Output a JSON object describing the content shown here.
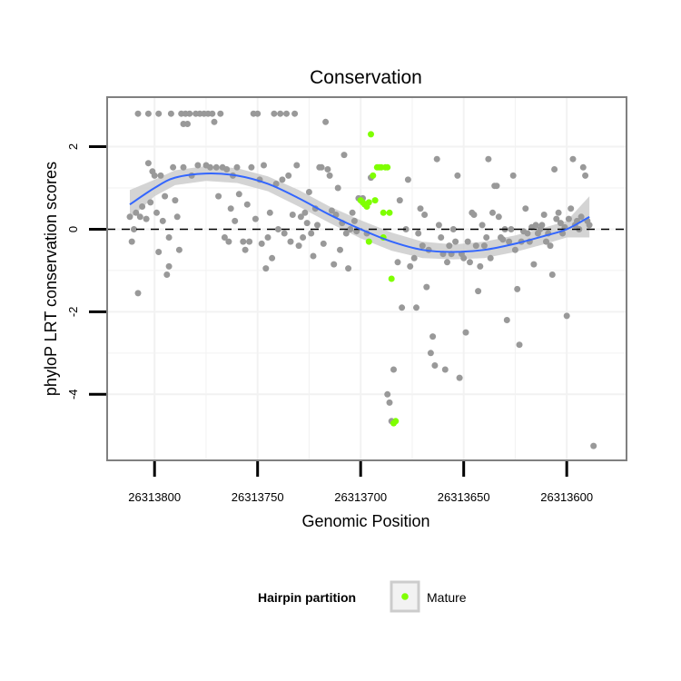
{
  "chart_data": {
    "type": "scatter",
    "title": "Conservation",
    "xlabel": "Genomic Position",
    "ylabel": "phyloP LRT conservation scores",
    "x_reversed": true,
    "xlim": [
      26313823,
      26313571
    ],
    "ylim": [
      -5.6,
      3.2
    ],
    "xticks": [
      26313800,
      26313750,
      26313700,
      26313650,
      26313600
    ],
    "xtick_labels": [
      "26313800",
      "26313750",
      "26313700",
      "26313650",
      "26313600"
    ],
    "yticks": [
      -4,
      -2,
      0,
      2
    ],
    "ytick_labels": [
      "-4",
      "-2",
      "0",
      "2"
    ],
    "reference_line": {
      "y": 0,
      "style": "dashed"
    },
    "grid": true,
    "legend": {
      "title": "Hairpin partition",
      "entries": [
        {
          "label": "Mature",
          "color": "#7fff00"
        }
      ],
      "position": "bottom"
    },
    "colors": {
      "points": "#999999",
      "mature": "#7fff00",
      "smooth": "#3366ff",
      "ribbon": "#cccccc",
      "panel_border": "#808080",
      "grid": "#f2f2f2"
    },
    "series": [
      {
        "name": "Other",
        "color": "#999999",
        "points": [
          [
            26313812,
            0.3
          ],
          [
            26313811,
            -0.3
          ],
          [
            26313810,
            0.0
          ],
          [
            26313809,
            0.4
          ],
          [
            26313808,
            -1.55
          ],
          [
            26313808,
            2.8
          ],
          [
            26313807,
            0.3
          ],
          [
            26313806,
            0.55
          ],
          [
            26313804,
            0.25
          ],
          [
            26313803,
            2.8
          ],
          [
            26313803,
            1.6
          ],
          [
            26313802,
            0.65
          ],
          [
            26313801,
            1.4
          ],
          [
            26313800,
            1.3
          ],
          [
            26313799,
            0.4
          ],
          [
            26313798,
            -0.55
          ],
          [
            26313798,
            2.8
          ],
          [
            26313797,
            1.3
          ],
          [
            26313796,
            0.2
          ],
          [
            26313795,
            0.8
          ],
          [
            26313794,
            -1.1
          ],
          [
            26313793,
            -0.9
          ],
          [
            26313793,
            -0.2
          ],
          [
            26313792,
            2.8
          ],
          [
            26313791,
            1.5
          ],
          [
            26313790,
            0.7
          ],
          [
            26313789,
            0.3
          ],
          [
            26313788,
            -0.5
          ],
          [
            26313787,
            2.8
          ],
          [
            26313786,
            2.55
          ],
          [
            26313786,
            1.5
          ],
          [
            26313785,
            2.8
          ],
          [
            26313784,
            2.55
          ],
          [
            26313783,
            2.8
          ],
          [
            26313782,
            1.3
          ],
          [
            26313780,
            2.8
          ],
          [
            26313779,
            1.55
          ],
          [
            26313778,
            2.8
          ],
          [
            26313776,
            2.8
          ],
          [
            26313775,
            1.55
          ],
          [
            26313774,
            2.8
          ],
          [
            26313773,
            1.5
          ],
          [
            26313772,
            2.8
          ],
          [
            26313771,
            2.6
          ],
          [
            26313770,
            1.5
          ],
          [
            26313769,
            0.8
          ],
          [
            26313768,
            2.8
          ],
          [
            26313767,
            1.5
          ],
          [
            26313766,
            -0.2
          ],
          [
            26313765,
            1.45
          ],
          [
            26313764,
            -0.3
          ],
          [
            26313763,
            0.5
          ],
          [
            26313762,
            1.3
          ],
          [
            26313761,
            0.2
          ],
          [
            26313760,
            1.5
          ],
          [
            26313759,
            0.85
          ],
          [
            26313757,
            -0.3
          ],
          [
            26313756,
            -0.5
          ],
          [
            26313755,
            0.6
          ],
          [
            26313754,
            -0.3
          ],
          [
            26313753,
            1.5
          ],
          [
            26313752,
            2.8
          ],
          [
            26313751,
            0.25
          ],
          [
            26313750,
            2.8
          ],
          [
            26313749,
            1.2
          ],
          [
            26313748,
            -0.35
          ],
          [
            26313747,
            1.55
          ],
          [
            26313746,
            -0.95
          ],
          [
            26313745,
            -0.2
          ],
          [
            26313744,
            0.4
          ],
          [
            26313743,
            -0.7
          ],
          [
            26313742,
            2.8
          ],
          [
            26313741,
            1.1
          ],
          [
            26313740,
            0.0
          ],
          [
            26313739,
            2.8
          ],
          [
            26313738,
            1.2
          ],
          [
            26313737,
            -0.1
          ],
          [
            26313736,
            2.8
          ],
          [
            26313735,
            1.3
          ],
          [
            26313734,
            -0.3
          ],
          [
            26313733,
            0.35
          ],
          [
            26313732,
            2.8
          ],
          [
            26313731,
            1.55
          ],
          [
            26313730,
            -0.4
          ],
          [
            26313729,
            0.3
          ],
          [
            26313728,
            -0.2
          ],
          [
            26313727,
            0.4
          ],
          [
            26313726,
            0.15
          ],
          [
            26313725,
            0.9
          ],
          [
            26313724,
            -0.1
          ],
          [
            26313723,
            -0.65
          ],
          [
            26313722,
            0.5
          ],
          [
            26313721,
            0.1
          ],
          [
            26313720,
            1.5
          ],
          [
            26313719,
            1.5
          ],
          [
            26313718,
            -0.35
          ],
          [
            26313717,
            2.6
          ],
          [
            26313716,
            1.45
          ],
          [
            26313715,
            1.3
          ],
          [
            26313714,
            0.45
          ],
          [
            26313713,
            -0.85
          ],
          [
            26313712,
            0.35
          ],
          [
            26313711,
            1.0
          ],
          [
            26313710,
            -0.5
          ],
          [
            26313709,
            0.15
          ],
          [
            26313708,
            1.8
          ],
          [
            26313707,
            -0.1
          ],
          [
            26313706,
            -0.95
          ],
          [
            26313705,
            0.0
          ],
          [
            26313704,
            0.4
          ],
          [
            26313703,
            0.2
          ],
          [
            26313702,
            -0.05
          ],
          [
            26313701,
            0.75
          ],
          [
            26313699,
            0.75
          ],
          [
            26313697,
            -0.1
          ],
          [
            26313695,
            1.25
          ],
          [
            26313687,
            -4.0
          ],
          [
            26313686,
            -4.2
          ],
          [
            26313685,
            -4.65
          ],
          [
            26313684,
            -3.4
          ],
          [
            26313682,
            -0.8
          ],
          [
            26313681,
            0.7
          ],
          [
            26313680,
            -1.9
          ],
          [
            26313678,
            0.0
          ],
          [
            26313677,
            1.2
          ],
          [
            26313676,
            -0.9
          ],
          [
            26313674,
            -0.7
          ],
          [
            26313673,
            -1.9
          ],
          [
            26313672,
            -0.1
          ],
          [
            26313671,
            0.5
          ],
          [
            26313670,
            -0.4
          ],
          [
            26313669,
            0.35
          ],
          [
            26313668,
            -1.4
          ],
          [
            26313667,
            -0.5
          ],
          [
            26313666,
            -3.0
          ],
          [
            26313665,
            -2.6
          ],
          [
            26313664,
            -3.3
          ],
          [
            26313663,
            1.7
          ],
          [
            26313662,
            0.1
          ],
          [
            26313661,
            -0.2
          ],
          [
            26313660,
            -0.6
          ],
          [
            26313659,
            -3.4
          ],
          [
            26313658,
            -0.8
          ],
          [
            26313657,
            -0.4
          ],
          [
            26313656,
            -0.6
          ],
          [
            26313655,
            0.0
          ],
          [
            26313654,
            -0.3
          ],
          [
            26313653,
            1.3
          ],
          [
            26313652,
            -3.6
          ],
          [
            26313651,
            -0.6
          ],
          [
            26313650,
            -0.7
          ],
          [
            26313649,
            -2.5
          ],
          [
            26313648,
            -0.3
          ],
          [
            26313647,
            -0.8
          ],
          [
            26313646,
            0.4
          ],
          [
            26313645,
            0.35
          ],
          [
            26313644,
            -0.4
          ],
          [
            26313643,
            -1.5
          ],
          [
            26313642,
            -0.9
          ],
          [
            26313641,
            0.1
          ],
          [
            26313640,
            -0.4
          ],
          [
            26313639,
            -0.2
          ],
          [
            26313638,
            1.7
          ],
          [
            26313637,
            -0.7
          ],
          [
            26313636,
            0.4
          ],
          [
            26313635,
            1.05
          ],
          [
            26313634,
            1.05
          ],
          [
            26313633,
            0.3
          ],
          [
            26313632,
            -0.2
          ],
          [
            26313631,
            -0.25
          ],
          [
            26313630,
            0.0
          ],
          [
            26313629,
            -2.2
          ],
          [
            26313628,
            -0.3
          ],
          [
            26313627,
            0.0
          ],
          [
            26313626,
            1.3
          ],
          [
            26313625,
            -0.5
          ],
          [
            26313624,
            -1.45
          ],
          [
            26313623,
            -2.8
          ],
          [
            26313622,
            -0.3
          ],
          [
            26313621,
            -0.05
          ],
          [
            26313620,
            0.5
          ],
          [
            26313619,
            -0.1
          ],
          [
            26313618,
            -0.3
          ],
          [
            26313617,
            0.05
          ],
          [
            26313616,
            -0.85
          ],
          [
            26313615,
            0.1
          ],
          [
            26313614,
            -0.1
          ],
          [
            26313613,
            0.0
          ],
          [
            26313612,
            0.1
          ],
          [
            26313611,
            0.35
          ],
          [
            26313610,
            -0.3
          ],
          [
            26313609,
            -0.1
          ],
          [
            26313608,
            -0.4
          ],
          [
            26313607,
            -1.1
          ],
          [
            26313606,
            1.45
          ],
          [
            26313605,
            0.25
          ],
          [
            26313604,
            0.4
          ],
          [
            26313603,
            0.15
          ],
          [
            26313602,
            -0.1
          ],
          [
            26313601,
            0.05
          ],
          [
            26313600,
            -2.1
          ],
          [
            26313599,
            0.25
          ],
          [
            26313598,
            0.5
          ],
          [
            26313597,
            1.7
          ],
          [
            26313596,
            0.1
          ],
          [
            26313595,
            0.2
          ],
          [
            26313594,
            0.0
          ],
          [
            26313593,
            0.3
          ],
          [
            26313592,
            1.5
          ],
          [
            26313591,
            1.3
          ],
          [
            26313590,
            0.2
          ],
          [
            26313589,
            0.1
          ],
          [
            26313587,
            -5.25
          ]
        ]
      },
      {
        "name": "Mature",
        "color": "#7fff00",
        "points": [
          [
            26313700,
            0.7
          ],
          [
            26313699,
            0.65
          ],
          [
            26313698,
            0.6
          ],
          [
            26313697,
            0.55
          ],
          [
            26313696,
            0.65
          ],
          [
            26313696,
            -0.3
          ],
          [
            26313695,
            2.3
          ],
          [
            26313694,
            1.3
          ],
          [
            26313693,
            0.7
          ],
          [
            26313692,
            1.5
          ],
          [
            26313691,
            1.5
          ],
          [
            26313690,
            1.5
          ],
          [
            26313689,
            0.4
          ],
          [
            26313688,
            1.5
          ],
          [
            26313687,
            1.5
          ],
          [
            26313686,
            0.4
          ],
          [
            26313685,
            -1.2
          ],
          [
            26313684,
            -4.7
          ],
          [
            26313683,
            -4.65
          ],
          [
            26313689,
            -0.2
          ]
        ]
      }
    ],
    "smooth": {
      "name": "loess",
      "color": "#3366ff",
      "points": [
        [
          26313812,
          0.6
        ],
        [
          26313800,
          1.0
        ],
        [
          26313790,
          1.25
        ],
        [
          26313775,
          1.35
        ],
        [
          26313760,
          1.3
        ],
        [
          26313745,
          1.1
        ],
        [
          26313730,
          0.75
        ],
        [
          26313715,
          0.35
        ],
        [
          26313700,
          0.0
        ],
        [
          26313685,
          -0.3
        ],
        [
          26313670,
          -0.5
        ],
        [
          26313655,
          -0.55
        ],
        [
          26313640,
          -0.5
        ],
        [
          26313625,
          -0.35
        ],
        [
          26313610,
          -0.15
        ],
        [
          26313600,
          0.0
        ],
        [
          26313589,
          0.3
        ]
      ],
      "ribbon_halfwidth": [
        0.35,
        0.2,
        0.18,
        0.18,
        0.18,
        0.18,
        0.2,
        0.2,
        0.22,
        0.22,
        0.2,
        0.18,
        0.2,
        0.2,
        0.2,
        0.2,
        0.5
      ]
    }
  }
}
